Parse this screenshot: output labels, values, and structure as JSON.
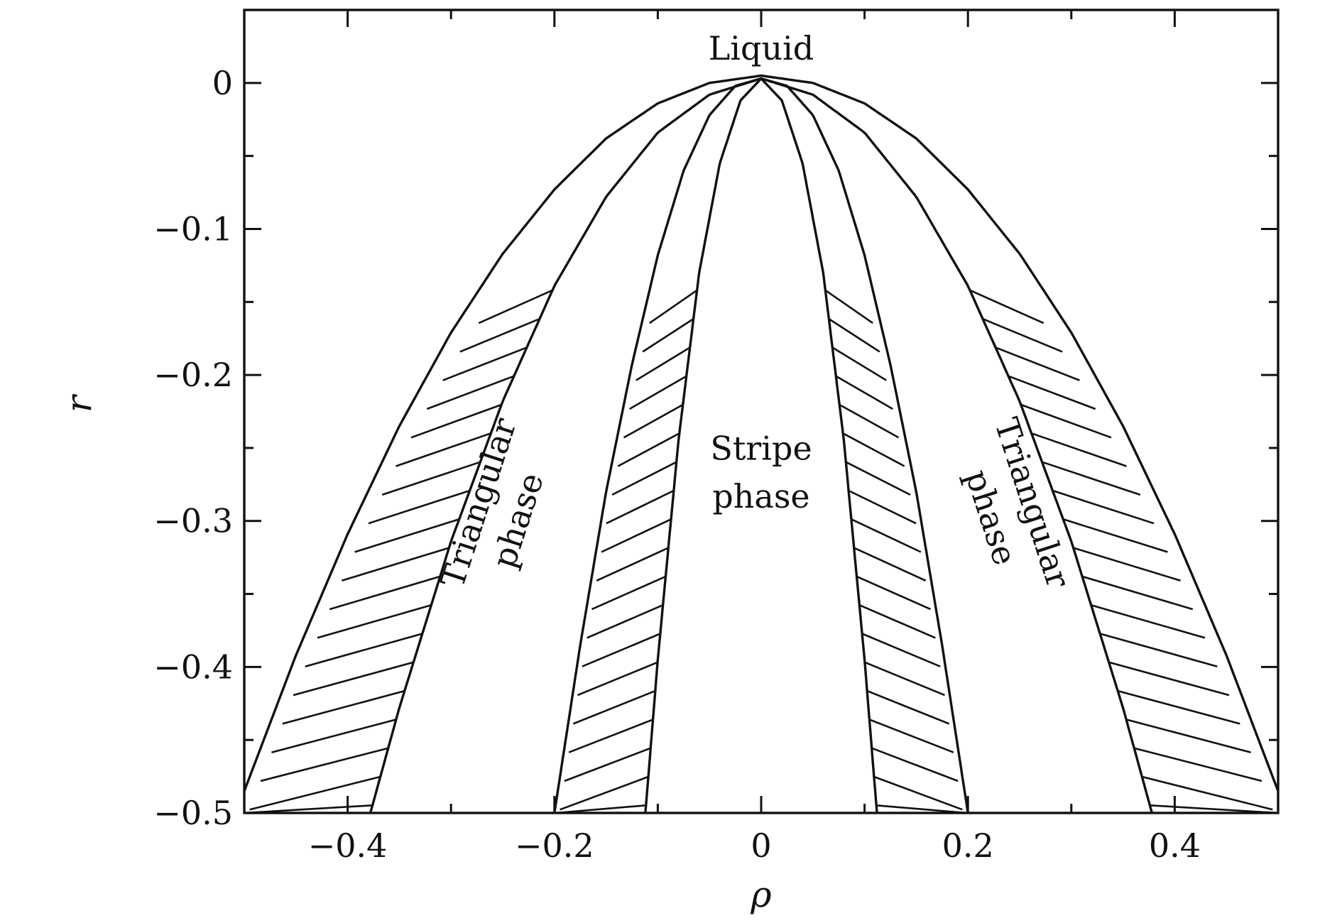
{
  "chart_data": {
    "type": "line",
    "title": "",
    "xlabel": "ρ",
    "ylabel": "r",
    "xlim": [
      -0.5,
      0.5
    ],
    "ylim": [
      -0.5,
      0.05
    ],
    "x_ticks": [
      -0.4,
      -0.2,
      0,
      0.2,
      0.4
    ],
    "x_tick_labels": [
      "−0.4",
      "−0.2",
      "0",
      "0.2",
      "0.4"
    ],
    "x_minor_ticks": [
      -0.3,
      -0.1,
      0.1,
      0.3
    ],
    "y_ticks": [
      0,
      -0.1,
      -0.2,
      -0.3,
      -0.4,
      -0.5
    ],
    "y_tick_labels": [
      "0",
      "−0.1",
      "−0.2",
      "−0.3",
      "−0.4",
      "−0.5"
    ],
    "y_minor_ticks": [
      -0.05,
      -0.15,
      -0.25,
      -0.35,
      -0.45
    ],
    "grid": false,
    "legend": "none",
    "series": [
      {
        "x": [
          -0.5,
          -0.45,
          -0.4,
          -0.35,
          -0.3,
          -0.25,
          -0.2,
          -0.15,
          -0.1,
          -0.05,
          0,
          0.05,
          0.1,
          0.15,
          0.2,
          0.25,
          0.3,
          0.35,
          0.4,
          0.45,
          0.5
        ],
        "y": [
          -0.485,
          -0.392,
          -0.309,
          -0.235,
          -0.171,
          -0.117,
          -0.073,
          -0.038,
          -0.014,
          0.0,
          0.005,
          0.0,
          -0.014,
          -0.038,
          -0.073,
          -0.117,
          -0.171,
          -0.235,
          -0.309,
          -0.392,
          -0.485
        ]
      },
      {
        "x": [
          -0.378,
          -0.35,
          -0.3,
          -0.25,
          -0.2,
          -0.15,
          -0.1,
          -0.05,
          0,
          0.05,
          0.1,
          0.15,
          0.2,
          0.25,
          0.3,
          0.35,
          0.378
        ],
        "y": [
          -0.5,
          -0.428,
          -0.314,
          -0.218,
          -0.139,
          -0.078,
          -0.034,
          -0.008,
          0.003,
          -0.008,
          -0.034,
          -0.078,
          -0.139,
          -0.218,
          -0.314,
          -0.428,
          -0.5
        ]
      },
      {
        "x": [
          -0.2,
          -0.175,
          -0.15,
          -0.125,
          -0.1,
          -0.075,
          -0.05,
          -0.025,
          0,
          0.025,
          0.05,
          0.075,
          0.1,
          0.125,
          0.15,
          0.175,
          0.2
        ],
        "y": [
          -0.5,
          -0.385,
          -0.28,
          -0.193,
          -0.118,
          -0.06,
          -0.022,
          -0.002,
          0.003,
          -0.002,
          -0.022,
          -0.06,
          -0.118,
          -0.193,
          -0.28,
          -0.385,
          -0.5
        ]
      },
      {
        "x": [
          -0.112,
          -0.1,
          -0.08,
          -0.06,
          -0.04,
          -0.02,
          0,
          0.02,
          0.04,
          0.06,
          0.08,
          0.1,
          0.112
        ],
        "y": [
          -0.5,
          -0.395,
          -0.245,
          -0.13,
          -0.055,
          -0.012,
          0.003,
          -0.012,
          -0.055,
          -0.13,
          -0.245,
          -0.395,
          -0.5
        ]
      }
    ],
    "shaded_bands": [
      {
        "between_series": [
          0,
          1
        ],
        "side": "left",
        "hatch": "diagonal",
        "y_range": [
          -0.5,
          -0.142
        ]
      },
      {
        "between_series": [
          2,
          3
        ],
        "side": "left",
        "hatch": "diagonal",
        "y_range": [
          -0.5,
          -0.142
        ]
      },
      {
        "between_series": [
          2,
          3
        ],
        "side": "right",
        "hatch": "diagonal",
        "y_range": [
          -0.5,
          -0.142
        ]
      },
      {
        "between_series": [
          0,
          1
        ],
        "side": "right",
        "hatch": "diagonal",
        "y_range": [
          -0.5,
          -0.142
        ]
      }
    ],
    "annotations": [
      {
        "text": "Liquid",
        "x": 0,
        "y": 0.016,
        "rotation": 0
      },
      {
        "text": "Stripe",
        "x": 0,
        "y": -0.258,
        "rotation": 0
      },
      {
        "text": "phase",
        "x": 0,
        "y": -0.291,
        "rotation": 0
      },
      {
        "text": "Triangular",
        "x": -0.263,
        "y": -0.29,
        "rotation": -72
      },
      {
        "text": "phase",
        "x": -0.225,
        "y": -0.302,
        "rotation": -72
      },
      {
        "text": "Triangular",
        "x": 0.252,
        "y": -0.29,
        "rotation": 72
      },
      {
        "text": "phase",
        "x": 0.212,
        "y": -0.3,
        "rotation": 72
      }
    ]
  }
}
